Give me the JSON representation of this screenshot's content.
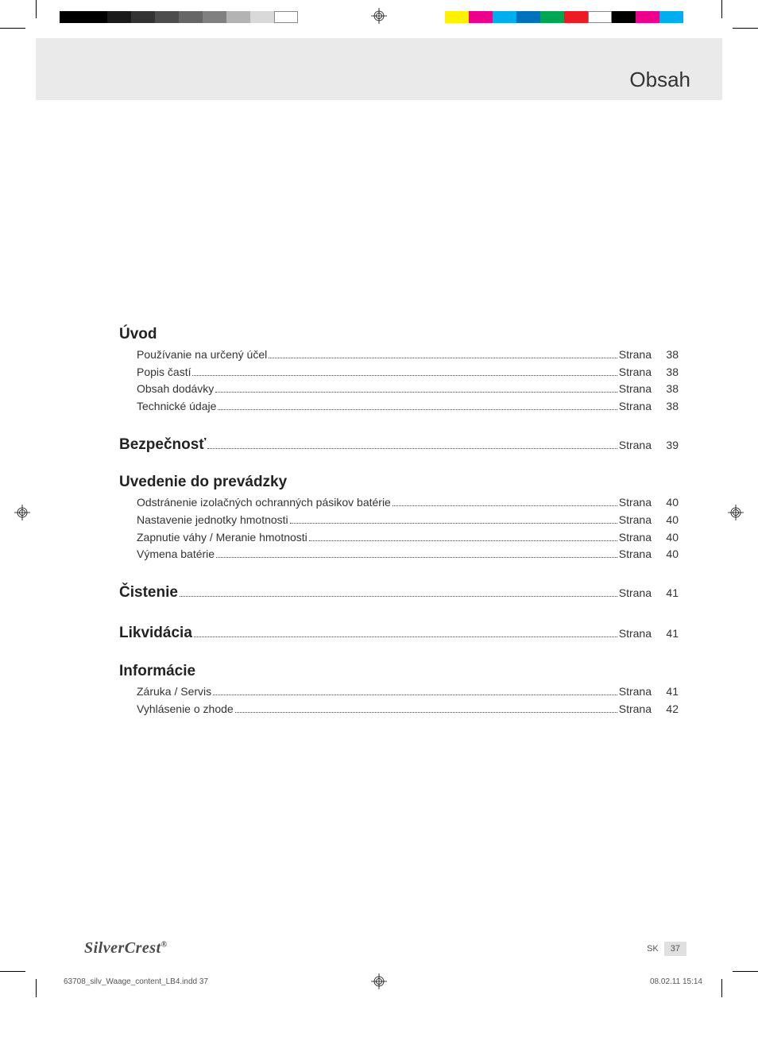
{
  "header": {
    "title": "Obsah"
  },
  "colorbars": {
    "left_swatches": [
      "#000000",
      "#000000",
      "#1a1a1a",
      "#333333",
      "#4d4d4d",
      "#666666",
      "#808080",
      "#b3b3b3",
      "#d9d9d9",
      "#ffffff"
    ],
    "right_swatches": [
      "#fff200",
      "#ec008c",
      "#00aeef",
      "#0072bc",
      "#00a651",
      "#ed1c24",
      "#ffffff",
      "#000000",
      "#ec008c",
      "#00aeef"
    ]
  },
  "toc": {
    "page_label": "Strana",
    "sections": [
      {
        "title": "Úvod",
        "inline_page": null,
        "items": [
          {
            "text": "Používanie na určený účel",
            "page": "38"
          },
          {
            "text": "Popis častí",
            "page": "38"
          },
          {
            "text": "Obsah dodávky",
            "page": "38"
          },
          {
            "text": "Technické údaje",
            "page": "38"
          }
        ]
      },
      {
        "title": "Bezpečnosť",
        "inline_page": "39",
        "items": []
      },
      {
        "title": "Uvedenie do prevádzky",
        "inline_page": null,
        "items": [
          {
            "text": "Odstránenie izolačných ochranných pásikov batérie",
            "page": "40"
          },
          {
            "text": "Nastavenie jednotky hmotnosti",
            "page": "40"
          },
          {
            "text": "Zapnutie váhy / Meranie hmotnosti",
            "page": "40"
          },
          {
            "text": "Výmena batérie",
            "page": "40"
          }
        ]
      },
      {
        "title": "Čistenie",
        "inline_page": "41",
        "items": []
      },
      {
        "title": "Likvidácia",
        "inline_page": "41",
        "items": []
      },
      {
        "title": "Informácie",
        "inline_page": null,
        "items": [
          {
            "text": "Záruka / Servis",
            "page": "41"
          },
          {
            "text": "Vyhlásenie o zhode",
            "page": "42"
          }
        ]
      }
    ]
  },
  "footer": {
    "brand_main": "Silver",
    "brand_sub": "Crest",
    "brand_mark": "®",
    "lang": "SK",
    "page_number": "37",
    "file_meta": "63708_silv_Waage_content_LB4.indd   37",
    "date_meta": "08.02.11   15:14"
  }
}
